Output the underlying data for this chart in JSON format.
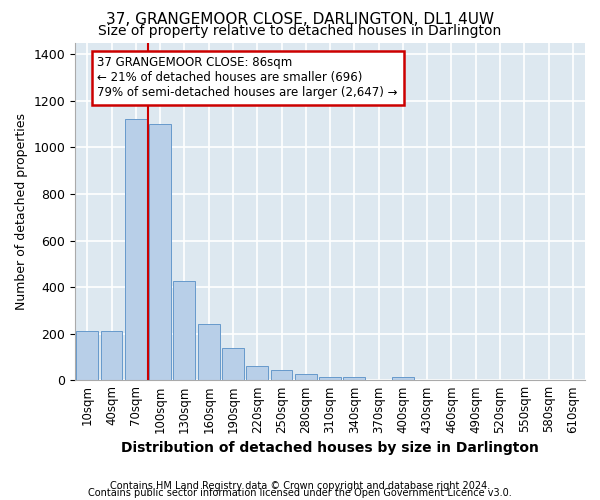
{
  "title": "37, GRANGEMOOR CLOSE, DARLINGTON, DL1 4UW",
  "subtitle": "Size of property relative to detached houses in Darlington",
  "xlabel": "Distribution of detached houses by size in Darlington",
  "ylabel": "Number of detached properties",
  "footnote1": "Contains HM Land Registry data © Crown copyright and database right 2024.",
  "footnote2": "Contains public sector information licensed under the Open Government Licence v3.0.",
  "categories": [
    "10sqm",
    "40sqm",
    "70sqm",
    "100sqm",
    "130sqm",
    "160sqm",
    "190sqm",
    "220sqm",
    "250sqm",
    "280sqm",
    "310sqm",
    "340sqm",
    "370sqm",
    "400sqm",
    "430sqm",
    "460sqm",
    "490sqm",
    "520sqm",
    "550sqm",
    "580sqm",
    "610sqm"
  ],
  "bar_values": [
    210,
    210,
    1120,
    1100,
    425,
    240,
    140,
    60,
    45,
    25,
    15,
    15,
    0,
    15,
    0,
    0,
    0,
    0,
    0,
    0,
    0
  ],
  "bar_color": "#b8cfe8",
  "bar_edge_color": "#6699cc",
  "background_color": "#dde8f0",
  "grid_color": "#ffffff",
  "vline_color": "#cc0000",
  "vline_pos": 2.5,
  "ylim": [
    0,
    1450
  ],
  "annotation_text": "37 GRANGEMOOR CLOSE: 86sqm\n← 21% of detached houses are smaller (696)\n79% of semi-detached houses are larger (2,647) →",
  "title_fontsize": 11,
  "subtitle_fontsize": 10,
  "xlabel_fontsize": 10,
  "ylabel_fontsize": 9,
  "tick_fontsize": 8.5,
  "footnote_fontsize": 7
}
